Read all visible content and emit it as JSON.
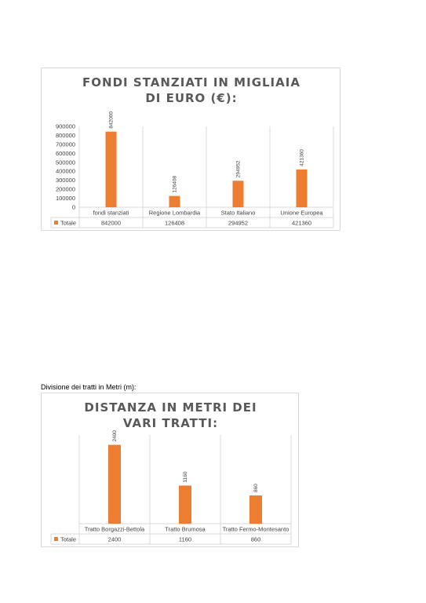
{
  "charts": [
    {
      "title": "FONDI STANZIATI IN MIGLIAIA DI EURO (€):",
      "chart_data": {
        "type": "bar",
        "categories": [
          "fondi stanziati",
          "Regione Lombardia",
          "Stato Italiano",
          "Unione Europea"
        ],
        "series": [
          {
            "name": "Totale",
            "values": [
              842000,
              126408,
              294952,
              421360
            ],
            "color": "#ED7D31"
          }
        ],
        "ylim": [
          0,
          900000
        ],
        "yticks": [
          0,
          100000,
          200000,
          300000,
          400000,
          500000,
          600000,
          700000,
          800000,
          900000
        ],
        "grid": "vertical",
        "data_labels": true,
        "data_table": true
      }
    },
    {
      "caption": "Divisione dei tratti in Metri (m):",
      "title": "DISTANZA IN METRI DEI VARI TRATTI:",
      "chart_data": {
        "type": "bar",
        "categories": [
          "Tratto Borgazzi-Bettola",
          "Tratto Brumosa",
          "Tratto Fermo-Montesanto"
        ],
        "series": [
          {
            "name": "Totale",
            "values": [
              2400,
              1160,
              860
            ],
            "color": "#ED7D31"
          }
        ],
        "ylim": [
          0,
          2700
        ],
        "yticks": [],
        "grid": "vertical",
        "data_labels": true,
        "data_table": true
      }
    }
  ]
}
